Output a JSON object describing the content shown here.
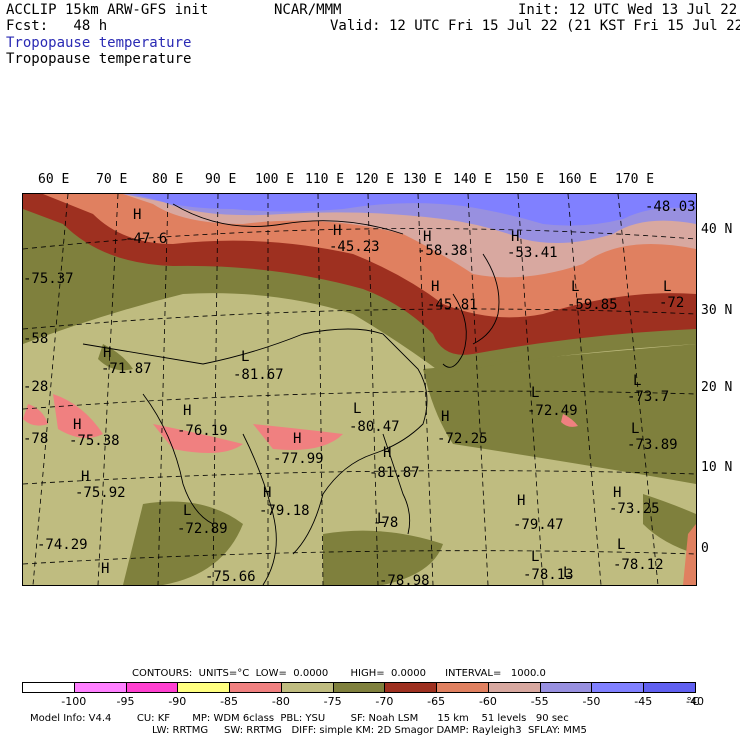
{
  "header": {
    "line1_left": "ACCLIP 15km ARW-GFS init",
    "line1_center": "NCAR/MMM",
    "line1_right": "Init: 12 UTC Wed 13 Jul 22",
    "line2_left": "Fcst:   48 h",
    "line2_right": "Valid: 12 UTC Fri 15 Jul 22 (21 KST Fri 15 Jul 22)",
    "title_blue": "Tropopause temperature",
    "title_black": "Tropopause temperature"
  },
  "map": {
    "lon_labels": [
      "60 E",
      "70 E",
      "80 E",
      "90 E",
      "100 E",
      "110 E",
      "120 E",
      "130 E",
      "140 E",
      "150 E",
      "160 E",
      "170 E"
    ],
    "lat_labels": [
      "40 N",
      "30 N",
      "20 N",
      "10 N",
      "0"
    ],
    "markers": [
      {
        "t": "H"
      },
      {
        "t": "H"
      },
      {
        "t": "H"
      },
      {
        "t": "H"
      },
      {
        "t": "H"
      },
      {
        "t": "L"
      },
      {
        "t": "L"
      },
      {
        "t": "L"
      },
      {
        "t": "L"
      },
      {
        "t": "H"
      },
      {
        "t": "H"
      },
      {
        "t": "L"
      },
      {
        "t": "H"
      },
      {
        "t": "H"
      },
      {
        "t": "L"
      },
      {
        "t": "L"
      },
      {
        "t": "H"
      },
      {
        "t": "H"
      },
      {
        "t": "H"
      },
      {
        "t": "H"
      },
      {
        "t": "H"
      },
      {
        "t": "L"
      },
      {
        "t": "H"
      },
      {
        "t": "L"
      },
      {
        "t": "L"
      },
      {
        "t": "L"
      },
      {
        "t": "L"
      },
      {
        "t": "H"
      }
    ],
    "values": [
      "-47.6",
      "-45.23",
      "-58.38",
      "-53.41",
      "-48.03",
      "-75.37",
      "-45.81",
      "-59.85",
      "-72",
      "-58",
      "-71.87",
      "-81.67",
      "-28",
      "-75.38",
      "-76.19",
      "-80.47",
      "-72.25",
      "-72.49",
      "-73.7",
      "-78",
      "-77.99",
      "-81.87",
      "-73.89",
      "-75.92",
      "-79.18",
      "-73.25",
      "-72.89",
      "-78",
      "-79.47",
      "-74.29",
      "-75.66",
      "-78.98",
      "-78.13",
      "-78.12"
    ]
  },
  "colorbar": {
    "contours_line": "CONTOURS:  UNITS=°C  LOW=  0.0000       HIGH=  0.0000      INTERVAL=   1000.0",
    "labels": [
      "-100",
      "-95",
      "-90",
      "-85",
      "-80",
      "-75",
      "-70",
      "-65",
      "-60",
      "-55",
      "-50",
      "-45",
      "-40",
      "°C"
    ],
    "colors": [
      "#ffffff",
      "#ff80ff",
      "#ff40d0",
      "#ffff80",
      "#f08080",
      "#bfbc80",
      "#7f803d",
      "#9e3020",
      "#e08060",
      "#d8a8a0",
      "#9890e0",
      "#8080ff",
      "#6060f0"
    ]
  },
  "model_info": {
    "line1": "Model Info: V4.4        CU: KF       MP: WDM 6class  PBL: YSU        SF: Noah LSM      15 km    51 levels   90 sec",
    "line2": "LW: RRTMG     SW: RRTMG   DIFF: simple KM: 2D Smagor DAMP: Rayleigh3  SFLAY: MM5"
  }
}
